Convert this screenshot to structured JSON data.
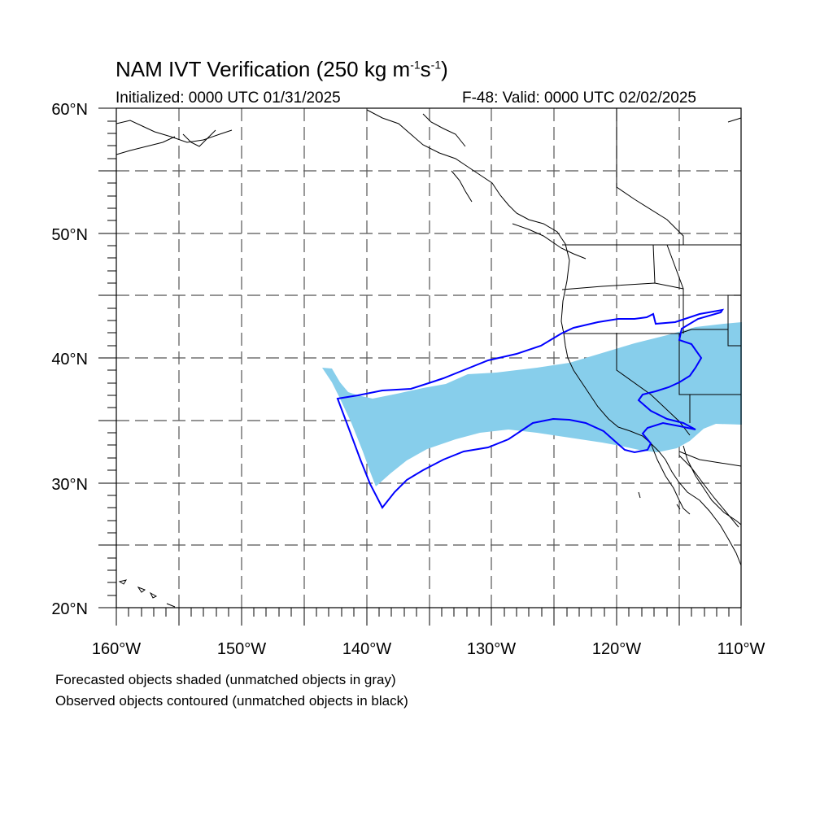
{
  "title": {
    "main": "NAM IVT Verification (250 kg m",
    "exp1": "-1",
    "mid": "s",
    "exp2": "-1",
    "end": ")"
  },
  "subtitle": {
    "initialized": "Initialized: 0000 UTC 01/31/2025",
    "valid": "F-48: Valid: 0000 UTC 02/02/2025"
  },
  "axes": {
    "lat_labels": [
      "60°N",
      "50°N",
      "40°N",
      "30°N",
      "20°N"
    ],
    "lon_labels": [
      "160°W",
      "150°W",
      "140°W",
      "130°W",
      "120°W",
      "110°W"
    ],
    "lat_range": [
      20,
      60
    ],
    "lon_range": [
      -160,
      -110
    ],
    "grid": "dashed, every 5 degrees"
  },
  "legend_notes": {
    "forecast": "Forecasted objects shaded (unmatched objects in gray)",
    "observed": "Observed objects contoured (unmatched objects in black)"
  },
  "colors": {
    "forecast_fill": "#87ceeb",
    "observed_contour": "#0000ff",
    "coastline": "#000000",
    "grid": "#555555"
  }
}
